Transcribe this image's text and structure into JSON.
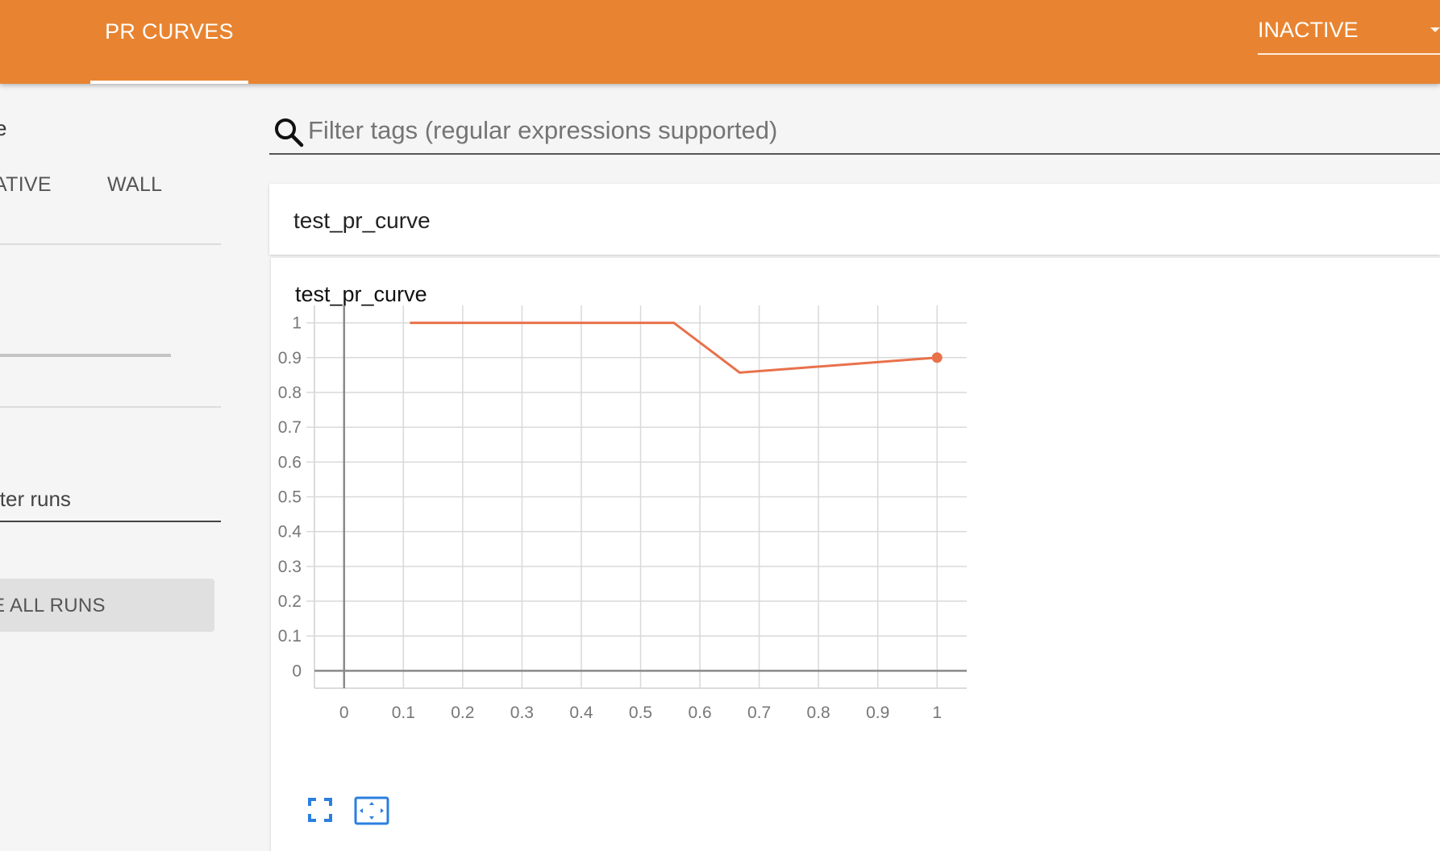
{
  "header": {
    "active_tab": "PR CURVES",
    "inactive_select": "INACTIVE",
    "color": "#e88431"
  },
  "sidebar": {
    "heading_fragment": "e",
    "time_options": [
      "ATIVE",
      "WALL"
    ],
    "filter_runs_placeholder": "lter runs",
    "toggle_runs_label": "E ALL RUNS"
  },
  "search": {
    "placeholder": "Filter tags (regular expressions supported)",
    "icon": "search-icon"
  },
  "category": {
    "title": "test_pr_curve"
  },
  "card": {
    "title": "test_pr_curve",
    "buttons": [
      "expand-icon",
      "fit-domain-icon"
    ]
  },
  "chart_data": {
    "type": "line",
    "title": "test_pr_curve",
    "xlabel": "",
    "ylabel": "",
    "xlim": [
      -0.05,
      1.05
    ],
    "ylim": [
      -0.05,
      1.05
    ],
    "x_ticks": [
      "0",
      "0.1",
      "0.2",
      "0.3",
      "0.4",
      "0.5",
      "0.6",
      "0.7",
      "0.8",
      "0.9",
      "1"
    ],
    "y_ticks": [
      "0",
      "0.1",
      "0.2",
      "0.3",
      "0.4",
      "0.5",
      "0.6",
      "0.7",
      "0.8",
      "0.9",
      "1"
    ],
    "grid": true,
    "series": [
      {
        "color": "#e8714a",
        "x": [
          0.111,
          0.556,
          0.667,
          1.0
        ],
        "y": [
          1.0,
          1.0,
          0.857,
          0.9
        ]
      }
    ]
  }
}
